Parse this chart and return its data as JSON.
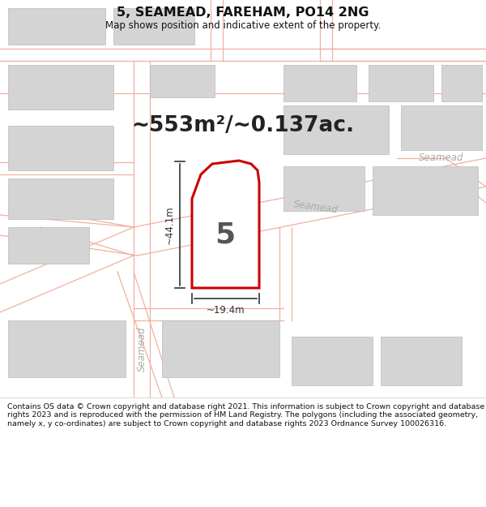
{
  "title": "5, SEAMEAD, FAREHAM, PO14 2NG",
  "subtitle": "Map shows position and indicative extent of the property.",
  "area_text": "~553m²/~0.137ac.",
  "dim_width": "~19.4m",
  "dim_height": "~44.1m",
  "number_label": "5",
  "footer": "Contains OS data © Crown copyright and database right 2021. This information is subject to Crown copyright and database rights 2023 and is reproduced with the permission of HM Land Registry. The polygons (including the associated geometry, namely x, y co-ordinates) are subject to Crown copyright and database rights 2023 Ordnance Survey 100026316.",
  "bg_color": "#ffffff",
  "map_bg": "#ffffff",
  "road_color": "#f0b0a0",
  "building_fill": "#d4d4d4",
  "building_stroke": "#bbbbbb",
  "plot_fill": "#ffffff",
  "plot_stroke": "#cc0000",
  "dim_color": "#333333",
  "road_label_color": "#aaaaaa",
  "title_color": "#111111",
  "footer_color": "#111111",
  "footer_bg": "#f0f0f0"
}
